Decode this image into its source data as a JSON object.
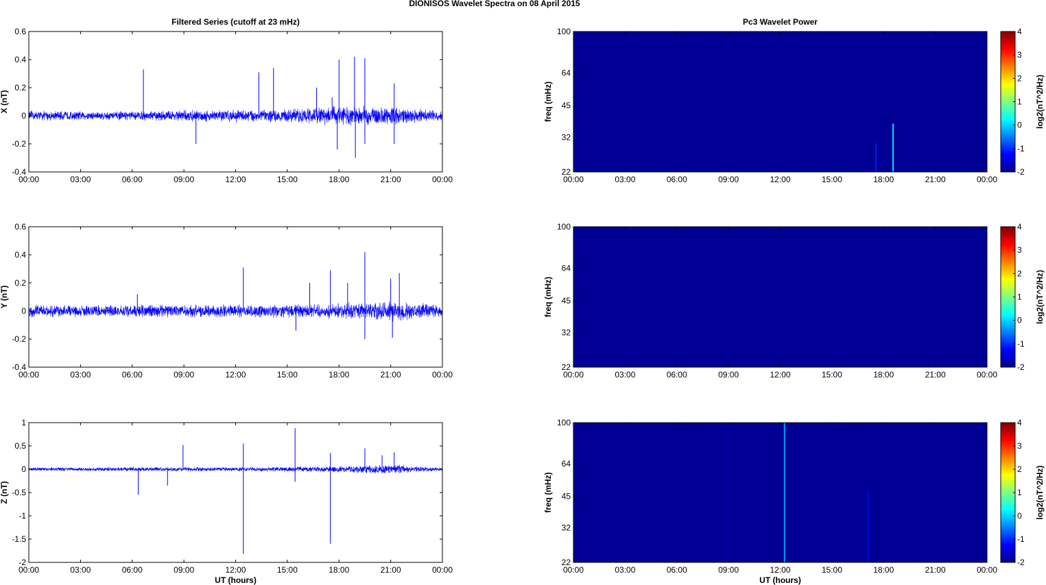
{
  "figure": {
    "title": "DIONISOS Wavelet Spectra on 08 April     2015"
  },
  "chart_data": [
    {
      "type": "line",
      "panel": "X",
      "title": "Filtered Series (cutoff at 23 mHz)",
      "ylabel": "X (nT)",
      "xlabel": "",
      "xlim": [
        "00:00",
        "24:00"
      ],
      "xticks": [
        "00:00",
        "03:00",
        "06:00",
        "09:00",
        "12:00",
        "15:00",
        "18:00",
        "21:00",
        "00:00"
      ],
      "ylim": [
        -0.4,
        0.6
      ],
      "yticks": [
        "-0.4",
        "-0.2",
        "0",
        "0.2",
        "0.4",
        "0.6"
      ],
      "color": "#0000ff",
      "noise_envelope": [
        {
          "hour": 0,
          "amp": 0.04
        },
        {
          "hour": 3,
          "amp": 0.035
        },
        {
          "hour": 6,
          "amp": 0.035
        },
        {
          "hour": 9,
          "amp": 0.045
        },
        {
          "hour": 12,
          "amp": 0.05
        },
        {
          "hour": 15,
          "amp": 0.05
        },
        {
          "hour": 17,
          "amp": 0.07
        },
        {
          "hour": 18,
          "amp": 0.08
        },
        {
          "hour": 19,
          "amp": 0.08
        },
        {
          "hour": 21,
          "amp": 0.07
        },
        {
          "hour": 24,
          "amp": 0.04
        }
      ],
      "spikes": [
        {
          "hour": 6.65,
          "value": 0.33
        },
        {
          "hour": 9.7,
          "value": -0.2
        },
        {
          "hour": 13.35,
          "value": 0.31
        },
        {
          "hour": 14.2,
          "value": 0.34
        },
        {
          "hour": 16.7,
          "value": 0.2
        },
        {
          "hour": 17.6,
          "value": 0.13
        },
        {
          "hour": 17.9,
          "value": -0.24
        },
        {
          "hour": 18.0,
          "value": 0.4
        },
        {
          "hour": 18.9,
          "value": 0.42
        },
        {
          "hour": 18.95,
          "value": -0.3
        },
        {
          "hour": 19.5,
          "value": 0.41
        },
        {
          "hour": 19.5,
          "value": -0.2
        },
        {
          "hour": 21.2,
          "value": 0.23
        },
        {
          "hour": 21.2,
          "value": -0.2
        }
      ]
    },
    {
      "type": "line",
      "panel": "Y",
      "title": "",
      "ylabel": "Y (nT)",
      "xlabel": "",
      "xlim": [
        "00:00",
        "24:00"
      ],
      "xticks": [
        "00:00",
        "03:00",
        "06:00",
        "09:00",
        "12:00",
        "15:00",
        "18:00",
        "21:00",
        "00:00"
      ],
      "ylim": [
        -0.4,
        0.6
      ],
      "yticks": [
        "-0.4",
        "-0.2",
        "0",
        "0.2",
        "0.4",
        "0.6"
      ],
      "color": "#0000ff",
      "noise_envelope": [
        {
          "hour": 0,
          "amp": 0.05
        },
        {
          "hour": 3,
          "amp": 0.045
        },
        {
          "hour": 6,
          "amp": 0.05
        },
        {
          "hour": 9,
          "amp": 0.05
        },
        {
          "hour": 12,
          "amp": 0.05
        },
        {
          "hour": 15,
          "amp": 0.05
        },
        {
          "hour": 18,
          "amp": 0.06
        },
        {
          "hour": 21,
          "amp": 0.08
        },
        {
          "hour": 24,
          "amp": 0.05
        }
      ],
      "spikes": [
        {
          "hour": 6.3,
          "value": 0.12
        },
        {
          "hour": 12.45,
          "value": 0.31
        },
        {
          "hour": 15.5,
          "value": -0.14
        },
        {
          "hour": 16.3,
          "value": 0.2
        },
        {
          "hour": 17.5,
          "value": 0.29
        },
        {
          "hour": 18.5,
          "value": 0.2
        },
        {
          "hour": 19.5,
          "value": 0.42
        },
        {
          "hour": 19.5,
          "value": -0.2
        },
        {
          "hour": 21.0,
          "value": 0.23
        },
        {
          "hour": 21.1,
          "value": -0.19
        },
        {
          "hour": 21.5,
          "value": 0.27
        }
      ]
    },
    {
      "type": "line",
      "panel": "Z",
      "title": "",
      "ylabel": "Z (nT)",
      "xlabel": "UT (hours)",
      "xlim": [
        "00:00",
        "24:00"
      ],
      "xticks": [
        "00:00",
        "03:00",
        "06:00",
        "09:00",
        "12:00",
        "15:00",
        "18:00",
        "21:00",
        "00:00"
      ],
      "ylim": [
        -2,
        1
      ],
      "yticks": [
        "-2",
        "-1.5",
        "-1",
        "-0.5",
        "0",
        "0.5",
        "1"
      ],
      "color": "#0000ff",
      "noise_envelope": [
        {
          "hour": 0,
          "amp": 0.04
        },
        {
          "hour": 6,
          "amp": 0.05
        },
        {
          "hour": 12,
          "amp": 0.05
        },
        {
          "hour": 18,
          "amp": 0.07
        },
        {
          "hour": 21,
          "amp": 0.12
        },
        {
          "hour": 24,
          "amp": 0.04
        }
      ],
      "spikes": [
        {
          "hour": 6.35,
          "value": -0.55
        },
        {
          "hour": 8.05,
          "value": -0.35
        },
        {
          "hour": 8.95,
          "value": 0.52
        },
        {
          "hour": 12.45,
          "value": 0.55
        },
        {
          "hour": 12.45,
          "value": -1.82
        },
        {
          "hour": 15.45,
          "value": 0.88
        },
        {
          "hour": 15.45,
          "value": -0.27
        },
        {
          "hour": 17.5,
          "value": 0.35
        },
        {
          "hour": 17.5,
          "value": -1.6
        },
        {
          "hour": 19.5,
          "value": 0.45
        },
        {
          "hour": 20.5,
          "value": 0.3
        },
        {
          "hour": 21.2,
          "value": 0.36
        }
      ]
    },
    {
      "type": "heatmap",
      "panel": "X",
      "title": "Pc3 Wavelet Power",
      "ylabel": "freq (mHz)",
      "xlabel": "",
      "xlim": [
        "00:00",
        "24:00"
      ],
      "xticks": [
        "00:00",
        "03:00",
        "06:00",
        "09:00",
        "12:00",
        "15:00",
        "18:00",
        "21:00",
        "00:00"
      ],
      "yscale": "log",
      "ylim": [
        22,
        100
      ],
      "yticks": [
        22,
        32,
        45,
        64,
        100
      ],
      "background_level": -2,
      "features": [
        {
          "hour": 16.95,
          "fmax": 24,
          "level": -1.7
        },
        {
          "hour": 17.55,
          "fmax": 30,
          "level": -1.1
        },
        {
          "hour": 18.55,
          "fmax": 37,
          "level": 0.2
        }
      ],
      "colorbar": {
        "label": "log2(nT^2/Hz)",
        "min": -2,
        "max": 4,
        "ticks": [
          "-2",
          "-1",
          "0",
          "1",
          "2",
          "3",
          "4"
        ]
      }
    },
    {
      "type": "heatmap",
      "panel": "Y",
      "title": "",
      "ylabel": "freq (mHz)",
      "xlabel": "",
      "xlim": [
        "00:00",
        "24:00"
      ],
      "xticks": [
        "00:00",
        "03:00",
        "06:00",
        "09:00",
        "12:00",
        "15:00",
        "18:00",
        "21:00",
        "00:00"
      ],
      "yscale": "log",
      "ylim": [
        22,
        100
      ],
      "yticks": [
        22,
        32,
        45,
        64,
        100
      ],
      "background_level": -2,
      "features": [],
      "colorbar": {
        "label": "log2(nT^2/Hz)",
        "min": -2,
        "max": 4,
        "ticks": [
          "-2",
          "-1",
          "0",
          "1",
          "2",
          "3",
          "4"
        ]
      }
    },
    {
      "type": "heatmap",
      "panel": "Z",
      "title": "",
      "ylabel": "freq (mHz)",
      "xlabel": "UT (hours)",
      "xlim": [
        "00:00",
        "24:00"
      ],
      "xticks": [
        "00:00",
        "03:00",
        "06:00",
        "09:00",
        "12:00",
        "15:00",
        "18:00",
        "21:00",
        "00:00"
      ],
      "yscale": "log",
      "ylim": [
        22,
        100
      ],
      "yticks": [
        22,
        32,
        45,
        64,
        100
      ],
      "background_level": -2,
      "features": [
        {
          "hour": 6.2,
          "fmax": 70,
          "level": -1.85
        },
        {
          "hour": 8.85,
          "fmax": 100,
          "level": -1.7
        },
        {
          "hour": 12.25,
          "fmax": 100,
          "level": -0.2
        },
        {
          "hour": 17.1,
          "fmax": 48,
          "level": -1.3
        }
      ],
      "colorbar": {
        "label": "log2(nT^2/Hz)",
        "min": -2,
        "max": 4,
        "ticks": [
          "-2",
          "-1",
          "0",
          "1",
          "2",
          "3",
          "4"
        ]
      }
    }
  ]
}
